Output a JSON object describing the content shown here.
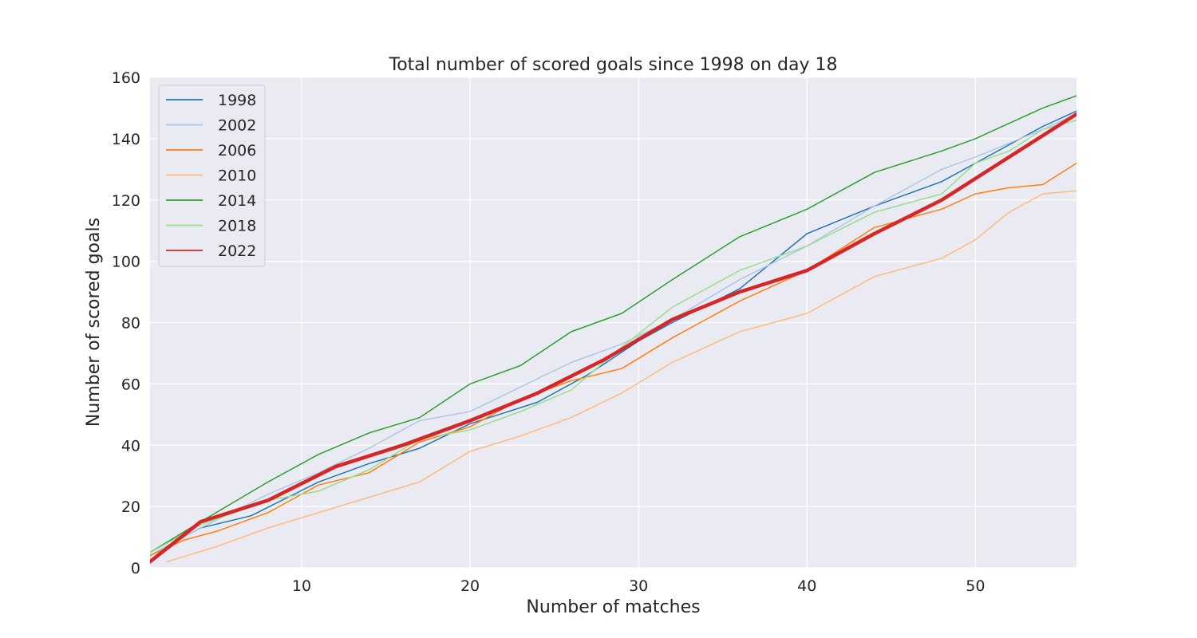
{
  "chart_data": {
    "type": "line",
    "title": "Total number of scored goals since 1998 on day 18",
    "xlabel": "Number of matches",
    "ylabel": "Number of scored goals",
    "xlim": [
      1,
      56
    ],
    "ylim": [
      0,
      160
    ],
    "xticks": [
      10,
      20,
      30,
      40,
      50
    ],
    "yticks": [
      0,
      20,
      40,
      60,
      80,
      100,
      120,
      140,
      160
    ],
    "grid": true,
    "legend_position": "top-left",
    "series": [
      {
        "name": "1998",
        "color": "#1f77b4",
        "width": 1.5,
        "x": [
          1,
          4,
          7,
          11,
          14,
          17,
          20,
          24,
          27,
          30,
          32,
          36,
          40,
          44,
          48,
          50,
          54,
          56
        ],
        "y": [
          4,
          13,
          17,
          28,
          34,
          39,
          47,
          54,
          63,
          74,
          80,
          91,
          109,
          118,
          126,
          132,
          144,
          149
        ]
      },
      {
        "name": "2002",
        "color": "#aec7e8",
        "width": 1.5,
        "x": [
          1,
          4,
          8,
          11,
          14,
          17,
          20,
          23,
          26,
          29,
          32,
          36,
          40,
          44,
          48,
          50,
          54,
          56
        ],
        "y": [
          4,
          13,
          24,
          31,
          39,
          48,
          51,
          59,
          67,
          73,
          81,
          94,
          105,
          118,
          130,
          134,
          143,
          148
        ]
      },
      {
        "name": "2006",
        "color": "#ff7f0e",
        "width": 1.5,
        "x": [
          1,
          3,
          5,
          8,
          11,
          14,
          17,
          20,
          23,
          26,
          29,
          32,
          36,
          40,
          44,
          48,
          50,
          52,
          54,
          56
        ],
        "y": [
          4,
          9,
          12,
          18,
          27,
          31,
          41,
          46,
          55,
          61,
          65,
          75,
          87,
          97,
          111,
          117,
          122,
          124,
          125,
          132
        ]
      },
      {
        "name": "2010",
        "color": "#ffbb78",
        "width": 1.5,
        "x": [
          2,
          5,
          8,
          11,
          14,
          17,
          20,
          23,
          26,
          29,
          32,
          36,
          40,
          44,
          48,
          50,
          52,
          54,
          56
        ],
        "y": [
          2,
          7,
          13,
          18,
          23,
          28,
          38,
          43,
          49,
          57,
          67,
          77,
          83,
          95,
          101,
          107,
          116,
          122,
          123
        ]
      },
      {
        "name": "2014",
        "color": "#2ca02c",
        "width": 1.5,
        "x": [
          1,
          4,
          8,
          11,
          14,
          17,
          20,
          23,
          26,
          29,
          32,
          36,
          40,
          44,
          48,
          50,
          54,
          56
        ],
        "y": [
          5,
          15,
          28,
          37,
          44,
          49,
          60,
          66,
          77,
          83,
          94,
          108,
          117,
          129,
          136,
          140,
          150,
          154
        ]
      },
      {
        "name": "2018",
        "color": "#98df8a",
        "width": 1.5,
        "x": [
          1,
          4,
          8,
          11,
          14,
          17,
          20,
          23,
          26,
          29,
          32,
          36,
          40,
          44,
          48,
          50,
          52,
          54,
          56
        ],
        "y": [
          5,
          14,
          22,
          25,
          32,
          42,
          45,
          51,
          58,
          72,
          85,
          97,
          105,
          116,
          122,
          132,
          136,
          143,
          146
        ]
      },
      {
        "name": "2022",
        "color": "#d62728",
        "width": 4.5,
        "x": [
          1,
          4,
          8,
          12,
          16,
          20,
          24,
          28,
          32,
          36,
          40,
          44,
          48,
          52,
          56
        ],
        "y": [
          2,
          15,
          22,
          33,
          40,
          48,
          57,
          68,
          81,
          90,
          97,
          109,
          120,
          134,
          148
        ]
      }
    ]
  }
}
